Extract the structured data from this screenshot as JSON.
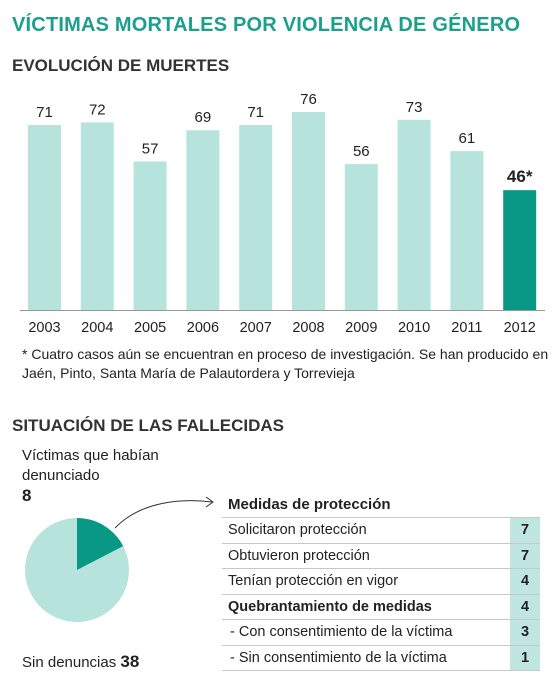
{
  "main_title": "VÍCTIMAS MORTALES POR VIOLENCIA DE GÉNERO",
  "section1_title": "EVOLUCIÓN DE MUERTES",
  "footnote": "* Cuatro casos aún se encuentran en proceso de investigación. Se han producido en Jaén, Pinto, Santa María de Palautordera  y Torrevieja",
  "section2_title": "SITUACIÓN DE LAS FALLECIDAS",
  "denounced_label": "Víctimas que habían denunciado",
  "denounced_value": "8",
  "no_complaints_label": "Sin denuncias",
  "no_complaints_value": "38",
  "colors": {
    "bar_light": "#b6e4dd",
    "bar_highlight": "#0a9886",
    "title": "#1aa08c"
  },
  "chart_data": [
    {
      "type": "bar",
      "categories": [
        "2003",
        "2004",
        "2005",
        "2006",
        "2007",
        "2008",
        "2009",
        "2010",
        "2011",
        "2012"
      ],
      "values": [
        71,
        72,
        57,
        69,
        71,
        76,
        56,
        73,
        61,
        46
      ],
      "value_labels": [
        "71",
        "72",
        "57",
        "69",
        "71",
        "76",
        "56",
        "73",
        "61",
        "46*"
      ],
      "highlight_index": 9,
      "title": "EVOLUCIÓN DE MUERTES",
      "xlabel": "",
      "ylabel": "",
      "ylim": [
        0,
        76
      ],
      "grid": false,
      "legend": "none"
    },
    {
      "type": "pie",
      "labels": [
        "Víctimas que habían denunciado",
        "Sin denuncias"
      ],
      "values": [
        8,
        38
      ],
      "colors": [
        "#0a9886",
        "#b6e4dd"
      ]
    },
    {
      "type": "table",
      "header": "Medidas de protección",
      "rows": [
        {
          "label": "Solicitaron protección",
          "value": "7",
          "style": "normal"
        },
        {
          "label": "Obtuvieron  protección",
          "value": "7",
          "style": "normal"
        },
        {
          "label": "Tenían protección en vigor",
          "value": "4",
          "style": "normal"
        },
        {
          "label": "Quebrantamiento de medidas",
          "value": "4",
          "style": "bold"
        },
        {
          "label": "- Con consentimiento de la víctima",
          "value": "3",
          "style": "indent"
        },
        {
          "label": "- Sin consentimiento de la víctima",
          "value": "1",
          "style": "indent"
        }
      ]
    }
  ]
}
